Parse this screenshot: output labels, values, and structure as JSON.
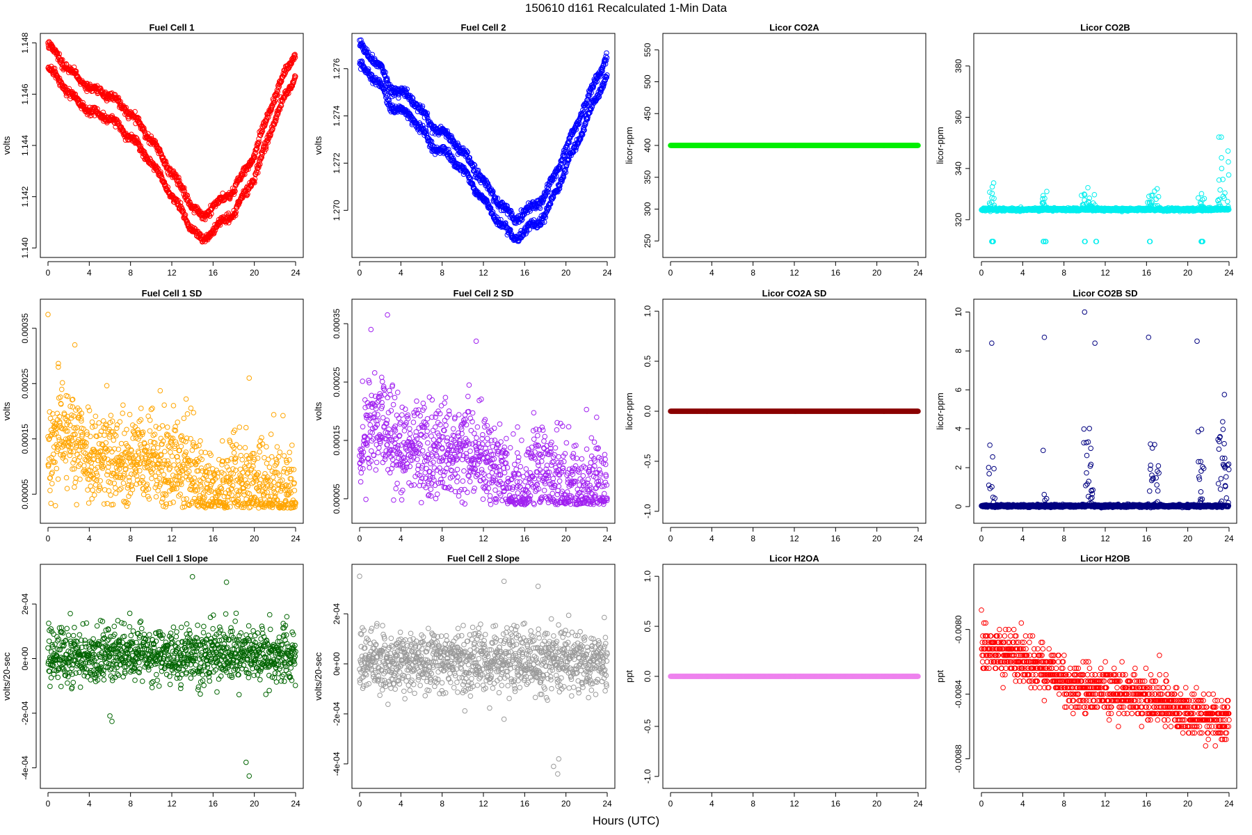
{
  "figure": {
    "title": "150610   d161   Recalculated 1-Min Data",
    "xlabel": "Hours (UTC)"
  },
  "chart_data": [
    {
      "type": "scatter",
      "title": "Fuel Cell 1",
      "ylabel": "volts",
      "color": "#ff0000",
      "xlim": [
        0,
        24
      ],
      "ylim": [
        1.1399,
        1.1481
      ],
      "xticks": [
        "0",
        "4",
        "8",
        "12",
        "16",
        "20",
        "24"
      ],
      "yticks": [
        1.14,
        1.142,
        1.144,
        1.146,
        1.148
      ],
      "ytick_labels": [
        "1.140",
        "1.142",
        "1.144",
        "1.146",
        "1.148"
      ],
      "pattern": "bands",
      "offset": 0.0009,
      "jitter": 0.00015,
      "points": [
        [
          0,
          1.1475
        ],
        [
          2,
          1.1465
        ],
        [
          4,
          1.1458
        ],
        [
          6,
          1.1455
        ],
        [
          8,
          1.1448
        ],
        [
          10,
          1.1438
        ],
        [
          12,
          1.1425
        ],
        [
          14,
          1.1412
        ],
        [
          15,
          1.1407
        ],
        [
          16,
          1.1412
        ],
        [
          18,
          1.1418
        ],
        [
          20,
          1.1432
        ],
        [
          22,
          1.1455
        ],
        [
          24,
          1.1472
        ]
      ]
    },
    {
      "type": "scatter",
      "title": "Fuel Cell 2",
      "ylabel": "volts",
      "color": "#0000ff",
      "xlim": [
        0,
        24
      ],
      "ylim": [
        1.2683,
        1.2772
      ],
      "xticks": [
        "0",
        "4",
        "8",
        "12",
        "16",
        "20",
        "24"
      ],
      "yticks": [
        1.27,
        1.272,
        1.274,
        1.276
      ],
      "ytick_labels": [
        "1.270",
        "1.272",
        "1.274",
        "1.276"
      ],
      "pattern": "bands",
      "offset": 0.0008,
      "jitter": 0.00018,
      "points": [
        [
          0,
          1.2766
        ],
        [
          2,
          1.2757
        ],
        [
          3,
          1.2748
        ],
        [
          5,
          1.2744
        ],
        [
          7,
          1.2732
        ],
        [
          9,
          1.2726
        ],
        [
          11,
          1.2715
        ],
        [
          13,
          1.2702
        ],
        [
          15,
          1.2692
        ],
        [
          16,
          1.2695
        ],
        [
          18,
          1.2702
        ],
        [
          20,
          1.2722
        ],
        [
          22,
          1.2742
        ],
        [
          24,
          1.2762
        ]
      ]
    },
    {
      "type": "scatter",
      "title": "Licor CO2A",
      "ylabel": "licor-ppm",
      "color": "#00ee00",
      "xlim": [
        0,
        24
      ],
      "ylim": [
        235,
        565
      ],
      "xticks": [
        "0",
        "4",
        "8",
        "12",
        "16",
        "20",
        "24"
      ],
      "yticks": [
        250,
        300,
        350,
        400,
        450,
        500,
        550
      ],
      "ytick_labels": [
        "250",
        "300",
        "350",
        "400",
        "450",
        "500",
        "550"
      ],
      "pattern": "flat",
      "value": 400
    },
    {
      "type": "scatter",
      "title": "Licor CO2B",
      "ylabel": "licor-ppm",
      "color": "#00eeee",
      "xlim": [
        0,
        24
      ],
      "ylim": [
        308,
        390
      ],
      "xticks": [
        "0",
        "4",
        "8",
        "12",
        "16",
        "20",
        "24"
      ],
      "yticks": [
        320,
        340,
        360,
        380
      ],
      "ytick_labels": [
        "320",
        "340",
        "360",
        "380"
      ],
      "pattern": "baseline",
      "base": 324,
      "noise": 0.25,
      "bursts": [
        [
          0.7,
          1.3,
          17
        ],
        [
          5.9,
          6.4,
          9
        ],
        [
          9.7,
          11.0,
          9
        ],
        [
          16.1,
          17.2,
          16
        ],
        [
          21.0,
          21.6,
          10
        ],
        [
          22.9,
          24,
          45
        ]
      ],
      "low_outliers": [
        1.0,
        1.1,
        6.0,
        6.2,
        10.0,
        11.1,
        16.3,
        21.3,
        21.4
      ],
      "low_value": 311.5
    },
    {
      "type": "scatter",
      "title": "Fuel Cell 1 SD",
      "ylabel": "volts",
      "color": "#ffa500",
      "xlim": [
        0,
        24
      ],
      "ylim": [
        1e-05,
        0.00039
      ],
      "xticks": [
        "0",
        "4",
        "8",
        "12",
        "16",
        "20",
        "24"
      ],
      "yticks": [
        5e-05,
        0.00015,
        0.00025,
        0.00035
      ],
      "ytick_labels": [
        "0.00005",
        "0.00015",
        "0.00025",
        "0.00035"
      ],
      "pattern": "noise",
      "spread": 4e-05,
      "tail": 8e-05,
      "clip": 2.5e-05,
      "points": [
        [
          0,
          0.00011
        ],
        [
          1,
          0.00016
        ],
        [
          2,
          0.00015
        ],
        [
          4,
          0.00011
        ],
        [
          8,
          0.00011
        ],
        [
          12,
          0.0001
        ],
        [
          14,
          8e-05
        ],
        [
          16,
          4e-05
        ],
        [
          17,
          5e-05
        ],
        [
          18,
          8e-05
        ],
        [
          20,
          6e-05
        ],
        [
          24,
          5e-05
        ]
      ],
      "outliers": [
        [
          0,
          0.000375
        ],
        [
          1,
          0.00028
        ],
        [
          2.6,
          0.00032
        ],
        [
          19.5,
          0.00026
        ]
      ]
    },
    {
      "type": "scatter",
      "title": "Fuel Cell 2 SD",
      "ylabel": "volts",
      "color": "#a020f0",
      "xlim": [
        0,
        24
      ],
      "ylim": [
        2e-05,
        0.00038
      ],
      "xticks": [
        "0",
        "4",
        "8",
        "12",
        "16",
        "20",
        "24"
      ],
      "yticks": [
        5e-05,
        0.00015,
        0.00025,
        0.00035
      ],
      "ytick_labels": [
        "0.00005",
        "0.00015",
        "0.00025",
        "0.00035"
      ],
      "pattern": "noise",
      "spread": 4e-05,
      "tail": 8e-05,
      "clip": 4e-05,
      "points": [
        [
          0,
          0.00012
        ],
        [
          1,
          0.00017
        ],
        [
          2,
          0.00018
        ],
        [
          4,
          0.00013
        ],
        [
          8,
          0.00013
        ],
        [
          12,
          0.00012
        ],
        [
          14,
          9e-05
        ],
        [
          15,
          6e-05
        ],
        [
          16,
          5e-05
        ],
        [
          17,
          0.0001
        ],
        [
          18,
          0.0001
        ],
        [
          20,
          7e-05
        ],
        [
          24,
          6e-05
        ]
      ],
      "outliers": [
        [
          2.7,
          0.000365
        ],
        [
          1.1,
          0.00034
        ],
        [
          11.3,
          0.00032
        ]
      ]
    },
    {
      "type": "scatter",
      "title": "Licor CO2A SD",
      "ylabel": "licor-ppm",
      "color": "#8b0000",
      "xlim": [
        0,
        24
      ],
      "ylim": [
        -1.05,
        1.05
      ],
      "xticks": [
        "0",
        "4",
        "8",
        "12",
        "16",
        "20",
        "24"
      ],
      "yticks": [
        -1.0,
        -0.5,
        0.0,
        0.5,
        1.0
      ],
      "ytick_labels": [
        "-1.0",
        "-0.5",
        "0.0",
        "0.5",
        "1.0"
      ],
      "pattern": "flat",
      "value": 0
    },
    {
      "type": "scatter",
      "title": "Licor CO2B SD",
      "ylabel": "licor-ppm",
      "color": "#000080",
      "xlim": [
        0,
        24
      ],
      "ylim": [
        -0.5,
        10.3
      ],
      "xticks": [
        "0",
        "4",
        "8",
        "12",
        "16",
        "20",
        "24"
      ],
      "yticks": [
        0,
        2,
        4,
        6,
        8,
        10
      ],
      "ytick_labels": [
        "0",
        "2",
        "4",
        "6",
        "8",
        "10"
      ],
      "pattern": "baseline",
      "base": 0.03,
      "noise": 0.03,
      "bursts": [
        [
          0.7,
          1.3,
          5
        ],
        [
          5.9,
          6.4,
          3.5
        ],
        [
          9.7,
          11.0,
          4.5
        ],
        [
          16.1,
          17.2,
          6.5
        ],
        [
          21.0,
          21.6,
          6
        ],
        [
          22.9,
          24,
          7.5
        ]
      ],
      "outliers": [
        [
          1.0,
          8.4
        ],
        [
          6.1,
          8.7
        ],
        [
          10.0,
          10.0
        ],
        [
          11.0,
          8.4
        ],
        [
          16.2,
          8.7
        ],
        [
          20.9,
          8.5
        ]
      ]
    },
    {
      "type": "scatter",
      "title": "Fuel Cell 1 Slope",
      "ylabel": "volts/20-sec",
      "color": "#006400",
      "xlim": [
        0,
        24
      ],
      "ylim": [
        -0.00045,
        0.00032
      ],
      "xticks": [
        "0",
        "4",
        "8",
        "12",
        "16",
        "20",
        "24"
      ],
      "yticks": [
        -0.0004,
        -0.0002,
        0,
        0.0002
      ],
      "ytick_labels": [
        "-4e-04",
        "-2e-04",
        "0e+00",
        "2e-04"
      ],
      "pattern": "noise",
      "spread": 5e-05,
      "tail": 6e-05,
      "points": [
        [
          0,
          1e-05
        ],
        [
          24,
          1e-05
        ]
      ],
      "outliers": [
        [
          14,
          0.0003
        ],
        [
          17.3,
          0.00028
        ],
        [
          19.2,
          -0.00038
        ],
        [
          19.5,
          -0.00043
        ],
        [
          6,
          -0.00021
        ],
        [
          6.2,
          -0.00023
        ]
      ]
    },
    {
      "type": "scatter",
      "title": "Fuel Cell 2 Slope",
      "ylabel": "volts/20-sec",
      "color": "#9a9a9a",
      "xlim": [
        0,
        24
      ],
      "ylim": [
        -0.00047,
        0.00037
      ],
      "xticks": [
        "0",
        "4",
        "8",
        "12",
        "16",
        "20",
        "24"
      ],
      "yticks": [
        -0.0004,
        -0.0002,
        0,
        0.0002
      ],
      "ytick_labels": [
        "-4e-04",
        "-2e-04",
        "0e+00",
        "2e-04"
      ],
      "pattern": "noise",
      "spread": 6e-05,
      "tail": 7e-05,
      "points": [
        [
          0,
          0.0
        ],
        [
          24,
          1e-05
        ]
      ],
      "outliers": [
        [
          0,
          0.00035
        ],
        [
          14,
          0.00033
        ],
        [
          17.3,
          0.00031
        ],
        [
          18.8,
          -0.00041
        ],
        [
          19.2,
          -0.00044
        ],
        [
          19.3,
          -0.00038
        ]
      ]
    },
    {
      "type": "scatter",
      "title": "Licor H2OA",
      "ylabel": "ppt",
      "color": "#ee82ee",
      "xlim": [
        0,
        24
      ],
      "ylim": [
        -1.05,
        1.05
      ],
      "xticks": [
        "0",
        "4",
        "8",
        "12",
        "16",
        "20",
        "24"
      ],
      "yticks": [
        -1.0,
        -0.5,
        0.0,
        0.5,
        1.0
      ],
      "ytick_labels": [
        "-1.0",
        "-0.5",
        "0.0",
        "0.5",
        "1.0"
      ],
      "pattern": "flat",
      "value": 0
    },
    {
      "type": "scatter",
      "title": "Licor H2OB",
      "ylabel": "ppt",
      "color": "#ff0000",
      "xlim": [
        0,
        24
      ],
      "ylim": [
        -0.00894,
        -0.00764
      ],
      "xticks": [
        "0",
        "4",
        "8",
        "12",
        "16",
        "20",
        "24"
      ],
      "yticks": [
        -0.0088,
        -0.0084,
        -0.008
      ],
      "ytick_labels": [
        "-0.0088",
        "-0.0084",
        "-0.0080"
      ],
      "pattern": "quantized",
      "step": 4e-05,
      "spread": 0.00012,
      "points": [
        [
          0,
          -0.00812
        ],
        [
          4,
          -0.00818
        ],
        [
          8,
          -0.00832
        ],
        [
          12,
          -0.00838
        ],
        [
          16,
          -0.00842
        ],
        [
          20,
          -0.00852
        ],
        [
          24,
          -0.00856
        ]
      ]
    }
  ]
}
